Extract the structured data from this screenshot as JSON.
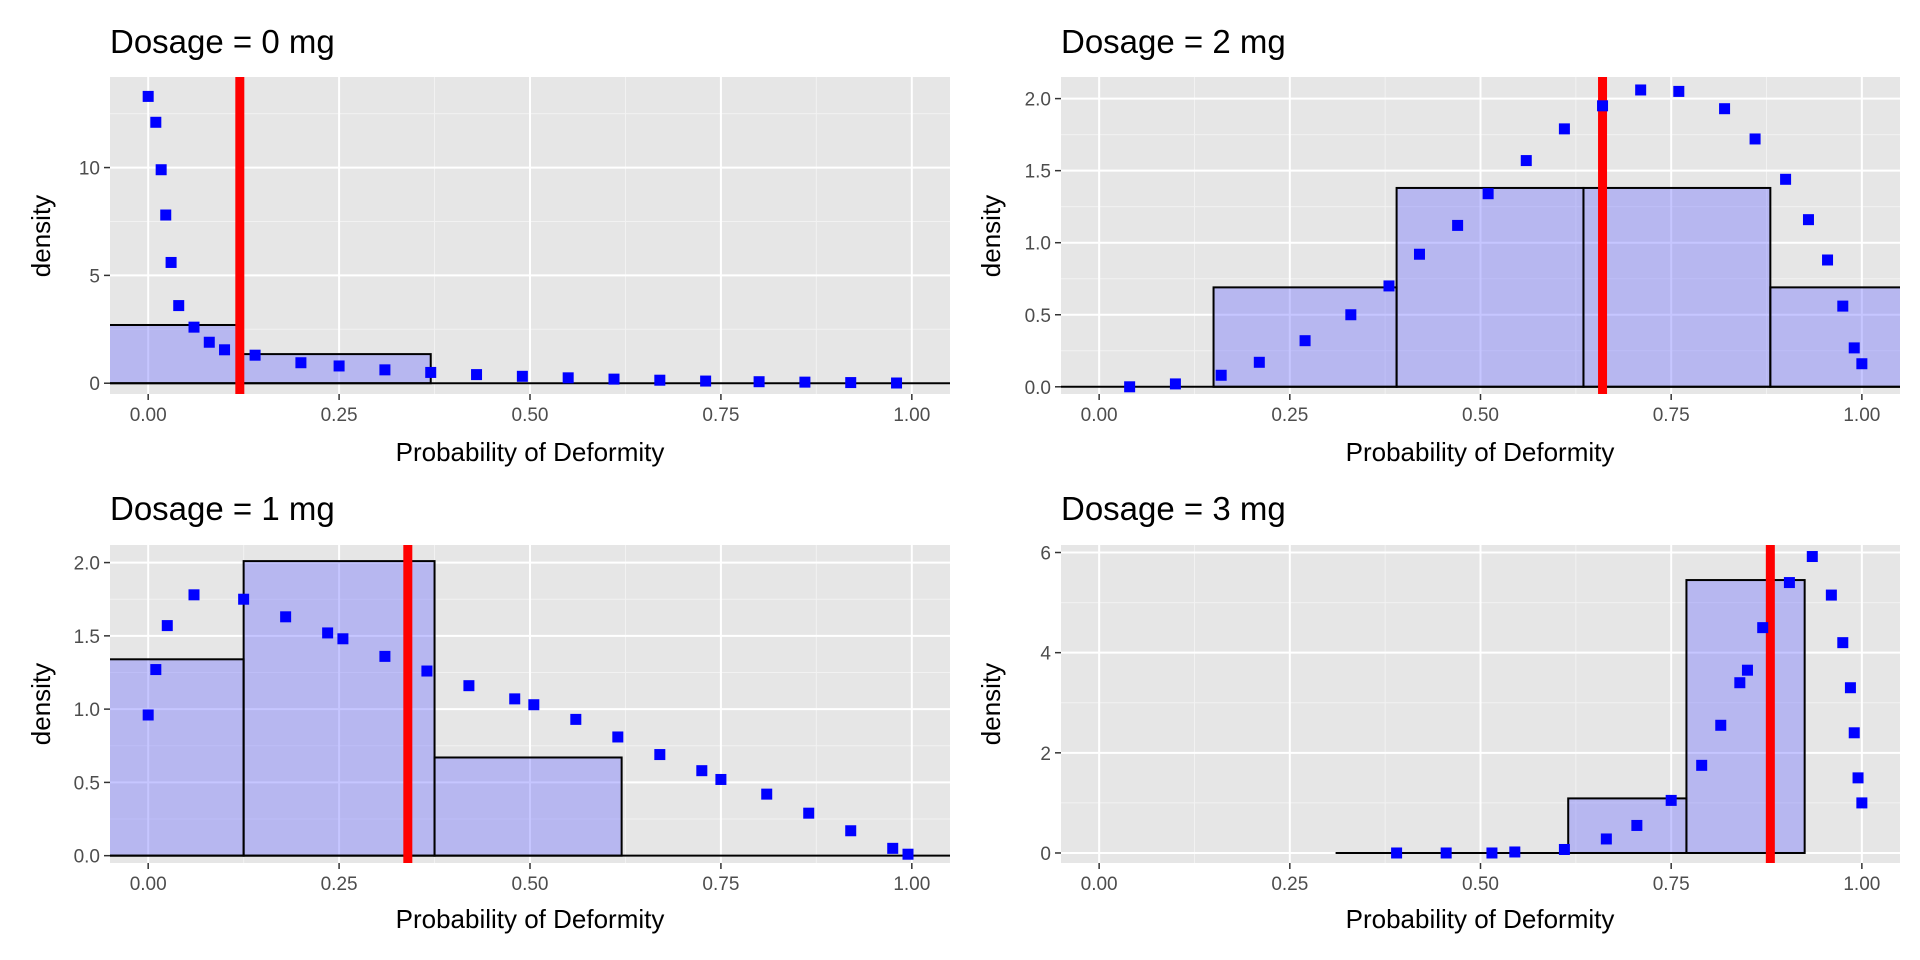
{
  "chart_data": [
    {
      "type": "histogram+density",
      "title": "Dosage = 0 mg",
      "xlabel": "Probability of Deformity",
      "ylabel": "density",
      "xlim": [
        -0.05,
        1.05
      ],
      "ylim": [
        -0.5,
        14.2
      ],
      "xticks": [
        0,
        0.25,
        0.5,
        0.75,
        1
      ],
      "xtick_labels": [
        "0.00",
        "0.25",
        "0.50",
        "0.75",
        "1.00"
      ],
      "yticks": [
        0,
        5,
        10
      ],
      "ytick_labels": [
        "0",
        "5",
        "10"
      ],
      "histogram": {
        "bins": [
          {
            "x0": -0.13,
            "x1": 0.12,
            "density": 2.7
          },
          {
            "x0": 0.12,
            "x1": 0.37,
            "density": 1.35
          },
          {
            "x0": 0.37,
            "x1": 1.1,
            "density": 0
          }
        ]
      },
      "vline_x": 0.12,
      "density_curve": {
        "x": [
          0.0,
          0.01,
          0.017,
          0.023,
          0.03,
          0.04,
          0.06,
          0.08,
          0.1,
          0.14,
          0.2,
          0.25,
          0.31,
          0.37,
          0.43,
          0.49,
          0.55,
          0.61,
          0.67,
          0.73,
          0.8,
          0.86,
          0.92,
          0.98
        ],
        "y": [
          13.3,
          12.1,
          9.9,
          7.8,
          5.6,
          3.6,
          2.6,
          1.9,
          1.55,
          1.3,
          0.95,
          0.8,
          0.62,
          0.5,
          0.4,
          0.32,
          0.25,
          0.19,
          0.14,
          0.1,
          0.07,
          0.05,
          0.03,
          0.01
        ]
      }
    },
    {
      "type": "histogram+density",
      "title": "Dosage = 2 mg",
      "xlabel": "Probability of Deformity",
      "ylabel": "density",
      "xlim": [
        -0.05,
        1.05
      ],
      "ylim": [
        -0.05,
        2.15
      ],
      "xticks": [
        0,
        0.25,
        0.5,
        0.75,
        1
      ],
      "xtick_labels": [
        "0.00",
        "0.25",
        "0.50",
        "0.75",
        "1.00"
      ],
      "yticks": [
        0,
        0.5,
        1,
        1.5,
        2
      ],
      "ytick_labels": [
        "0.0",
        "0.5",
        "1.0",
        "1.5",
        "2.0"
      ],
      "histogram": {
        "bins": [
          {
            "x0": -0.1,
            "x1": 0.15,
            "density": 0
          },
          {
            "x0": 0.15,
            "x1": 0.39,
            "density": 0.69
          },
          {
            "x0": 0.39,
            "x1": 0.635,
            "density": 1.38
          },
          {
            "x0": 0.635,
            "x1": 0.88,
            "density": 1.38
          },
          {
            "x0": 0.88,
            "x1": 1.125,
            "density": 0.69
          }
        ]
      },
      "vline_x": 0.66,
      "density_curve": {
        "x": [
          0.04,
          0.1,
          0.16,
          0.21,
          0.27,
          0.33,
          0.38,
          0.42,
          0.47,
          0.51,
          0.56,
          0.61,
          0.66,
          0.71,
          0.76,
          0.82,
          0.86,
          0.9,
          0.93,
          0.955,
          0.975,
          0.99,
          1.0
        ],
        "y": [
          0.0,
          0.02,
          0.08,
          0.17,
          0.32,
          0.5,
          0.7,
          0.92,
          1.12,
          1.34,
          1.57,
          1.79,
          1.95,
          2.06,
          2.05,
          1.93,
          1.72,
          1.44,
          1.16,
          0.88,
          0.56,
          0.27,
          0.16
        ]
      }
    },
    {
      "type": "histogram+density",
      "title": "Dosage = 1 mg",
      "xlabel": "Probability of Deformity",
      "ylabel": "density",
      "xlim": [
        -0.05,
        1.05
      ],
      "ylim": [
        -0.05,
        2.12
      ],
      "xticks": [
        0,
        0.25,
        0.5,
        0.75,
        1
      ],
      "xtick_labels": [
        "0.00",
        "0.25",
        "0.50",
        "0.75",
        "1.00"
      ],
      "yticks": [
        0,
        0.5,
        1,
        1.5,
        2
      ],
      "ytick_labels": [
        "0.0",
        "0.5",
        "1.0",
        "1.5",
        "2.0"
      ],
      "histogram": {
        "bins": [
          {
            "x0": -0.125,
            "x1": 0.125,
            "density": 1.34
          },
          {
            "x0": 0.125,
            "x1": 0.375,
            "density": 2.01
          },
          {
            "x0": 0.375,
            "x1": 0.62,
            "density": 0.67
          },
          {
            "x0": 0.62,
            "x1": 1.1,
            "density": 0
          }
        ]
      },
      "vline_x": 0.34,
      "density_curve": {
        "x": [
          0.0,
          0.01,
          0.025,
          0.06,
          0.125,
          0.18,
          0.235,
          0.255,
          0.31,
          0.365,
          0.42,
          0.48,
          0.505,
          0.56,
          0.615,
          0.67,
          0.725,
          0.75,
          0.81,
          0.865,
          0.92,
          0.975,
          0.995
        ],
        "y": [
          0.96,
          1.27,
          1.57,
          1.78,
          1.75,
          1.63,
          1.52,
          1.48,
          1.36,
          1.26,
          1.16,
          1.07,
          1.03,
          0.93,
          0.81,
          0.69,
          0.58,
          0.52,
          0.42,
          0.29,
          0.17,
          0.05,
          0.01
        ]
      }
    },
    {
      "type": "histogram+density",
      "title": "Dosage = 3 mg",
      "xlabel": "Probability of Deformity",
      "ylabel": "density",
      "xlim": [
        -0.05,
        1.05
      ],
      "ylim": [
        -0.2,
        6.15
      ],
      "xticks": [
        0,
        0.25,
        0.5,
        0.75,
        1
      ],
      "xtick_labels": [
        "0.00",
        "0.25",
        "0.50",
        "0.75",
        "1.00"
      ],
      "yticks": [
        0,
        2,
        4,
        6
      ],
      "ytick_labels": [
        "0",
        "2",
        "4",
        "6"
      ],
      "histogram": {
        "bins": [
          {
            "x0": 0.31,
            "x1": 0.615,
            "density": 0
          },
          {
            "x0": 0.615,
            "x1": 0.77,
            "density": 1.09
          },
          {
            "x0": 0.77,
            "x1": 0.925,
            "density": 5.45
          }
        ]
      },
      "vline_x": 0.88,
      "density_curve": {
        "x": [
          0.39,
          0.455,
          0.515,
          0.545,
          0.61,
          0.665,
          0.705,
          0.75,
          0.79,
          0.815,
          0.84,
          0.85,
          0.87,
          0.905,
          0.935,
          0.96,
          0.975,
          0.985,
          0.99,
          0.995,
          1.0
        ],
        "y": [
          0.0,
          0.0,
          0.0,
          0.02,
          0.07,
          0.28,
          0.55,
          1.05,
          1.75,
          2.55,
          3.4,
          3.65,
          4.5,
          5.4,
          5.92,
          5.15,
          4.2,
          3.3,
          2.4,
          1.5,
          1.0
        ]
      }
    }
  ]
}
